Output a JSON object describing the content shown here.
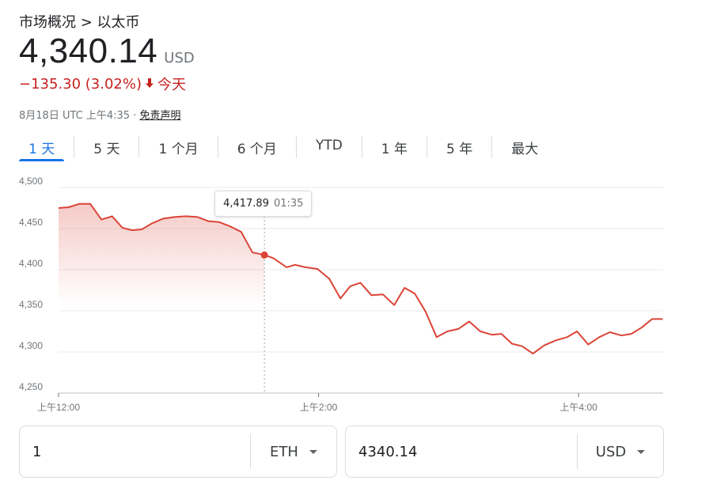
{
  "breadcrumb": "市场概况 > 以太币",
  "price": "4,340.14",
  "currency": "USD",
  "change": {
    "amount": "−135.30 (3.02%)",
    "period": "今天",
    "color": "#c5221f"
  },
  "meta": {
    "timestamp": "8月18日 UTC 上午4:35 · ",
    "disclaimer": "免责声明"
  },
  "tabs": [
    {
      "label": "1 天",
      "active": true
    },
    {
      "label": "5 天"
    },
    {
      "label": "1 个月"
    },
    {
      "label": "6 个月"
    },
    {
      "label": "YTD"
    },
    {
      "label": "1 年"
    },
    {
      "label": "5 年"
    },
    {
      "label": "最大"
    }
  ],
  "chart_data": {
    "type": "area",
    "line_color": "#db4437",
    "ylim": [
      4250,
      4500
    ],
    "yticks": [
      4250,
      4300,
      4350,
      4400,
      4450,
      4500
    ],
    "ytick_labels": [
      "4,250",
      "4,300",
      "4,350",
      "4,400",
      "4,450",
      "4,500"
    ],
    "xlim_hours": [
      0,
      4.65
    ],
    "xticks": [
      {
        "hour": 0,
        "label": "上午12:00"
      },
      {
        "hour": 2,
        "label": "上午2:00"
      },
      {
        "hour": 4,
        "label": "上午4:00"
      }
    ],
    "grid": true,
    "tooltip": {
      "value": "4,417.89",
      "time": "01:35",
      "hour": 1.583
    },
    "highlight_value": 4417.89,
    "series": [
      {
        "x": [
          0,
          0.077,
          0.159,
          0.244,
          0.33,
          0.412,
          0.491,
          0.567,
          0.641,
          0.714,
          0.803,
          0.891,
          0.98,
          1.07,
          1.152,
          1.234,
          1.316,
          1.405,
          1.491,
          1.583,
          1.652,
          1.755,
          1.819,
          1.899,
          1.991,
          2.082,
          2.168,
          2.244,
          2.322,
          2.406,
          2.495,
          2.582,
          2.661,
          2.74,
          2.823,
          2.908,
          2.99,
          3.074,
          3.159,
          3.244,
          3.332,
          3.406,
          3.488,
          3.565,
          3.649,
          3.735,
          3.823,
          3.911,
          3.988,
          4.074,
          4.158,
          4.241,
          4.329,
          4.406,
          4.488,
          4.565,
          4.647
        ],
        "y": [
          4475,
          4476,
          4480,
          4480,
          4461,
          4465,
          4451,
          4448,
          4449,
          4456,
          4462,
          4464,
          4465,
          4464,
          4459,
          4458,
          4453,
          4446,
          4421,
          4418,
          4414,
          4403,
          4406,
          4403,
          4401,
          4389,
          4365,
          4380,
          4384,
          4369,
          4370,
          4357,
          4378,
          4371,
          4349,
          4318,
          4325,
          4328,
          4337,
          4325,
          4321,
          4322,
          4310,
          4307,
          4298,
          4308,
          4314,
          4318,
          4325,
          4309,
          4318,
          4324,
          4320,
          4322,
          4330,
          4340,
          4340
        ]
      }
    ]
  },
  "converter": {
    "left_value": "1",
    "left_unit": "ETH",
    "right_value": "4340.14",
    "right_unit": "USD"
  }
}
